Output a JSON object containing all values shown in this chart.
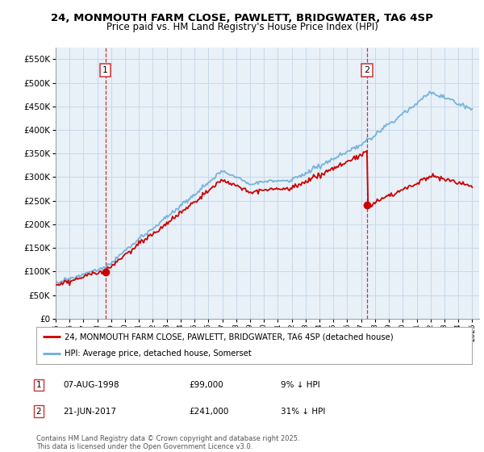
{
  "title": "24, MONMOUTH FARM CLOSE, PAWLETT, BRIDGWATER, TA6 4SP",
  "subtitle": "Price paid vs. HM Land Registry's House Price Index (HPI)",
  "property_label": "24, MONMOUTH FARM CLOSE, PAWLETT, BRIDGWATER, TA6 4SP (detached house)",
  "hpi_label": "HPI: Average price, detached house, Somerset",
  "sale1_date": "07-AUG-1998",
  "sale1_price": 99000,
  "sale1_pct": "9% ↓ HPI",
  "sale2_date": "21-JUN-2017",
  "sale2_price": 241000,
  "sale2_pct": "31% ↓ HPI",
  "copyright": "Contains HM Land Registry data © Crown copyright and database right 2025.\nThis data is licensed under the Open Government Licence v3.0.",
  "hpi_color": "#6baed6",
  "property_color": "#cc0000",
  "vline_color": "#cc0000",
  "bg_color": "#ffffff",
  "chart_bg_color": "#e8f0f8",
  "grid_color": "#c8d8e8",
  "ylim": [
    0,
    575000
  ],
  "yticks": [
    0,
    50000,
    100000,
    150000,
    200000,
    250000,
    300000,
    350000,
    400000,
    450000,
    500000,
    550000
  ]
}
